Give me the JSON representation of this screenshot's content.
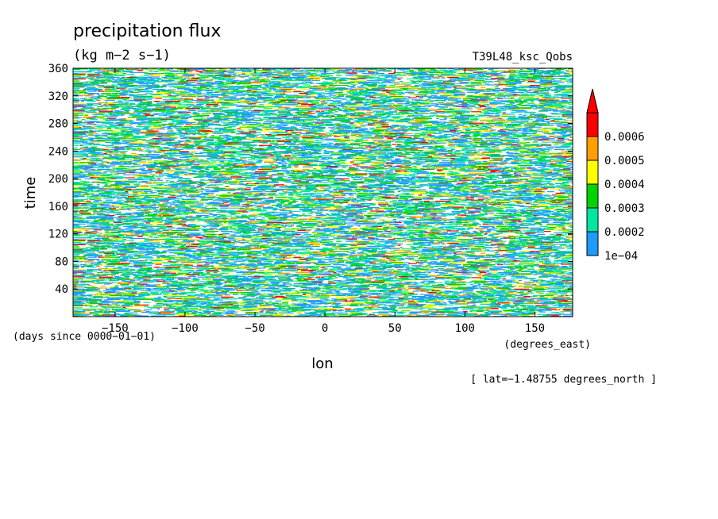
{
  "chart_data": {
    "type": "heatmap",
    "title": "precipitation flux",
    "units": "(kg m−2 s−1)",
    "run_label": "T39L48_ksc_Qobs",
    "xlabel": "lon",
    "x_units_label": "(degrees_east)",
    "ylabel": "time",
    "y_units_label": "(days since 0000−01−01)",
    "footer": "[ lat=−1.48755 degrees_north ]",
    "xlim": [
      -180,
      177
    ],
    "ylim": [
      0,
      360
    ],
    "x_ticks": [
      -150,
      -100,
      -50,
      0,
      50,
      100,
      150
    ],
    "x_tick_labels": [
      "−150",
      "−100",
      "−50",
      "0",
      "50",
      "100",
      "150"
    ],
    "y_ticks": [
      40,
      80,
      120,
      160,
      200,
      240,
      280,
      320,
      360
    ],
    "y_tick_labels": [
      "40",
      "80",
      "120",
      "160",
      "200",
      "240",
      "280",
      "320",
      "360"
    ],
    "colorbar": {
      "levels": [
        "1e−04",
        "0.0002",
        "0.0003",
        "0.0004",
        "0.0005",
        "0.0006"
      ],
      "level_values": [
        0.0001,
        0.0002,
        0.0003,
        0.0004,
        0.0005,
        0.0006
      ],
      "colors": [
        "#1e9bff",
        "#00e8a0",
        "#00d400",
        "#ffff00",
        "#ffa000",
        "#ff0000"
      ],
      "extend": "max"
    }
  }
}
